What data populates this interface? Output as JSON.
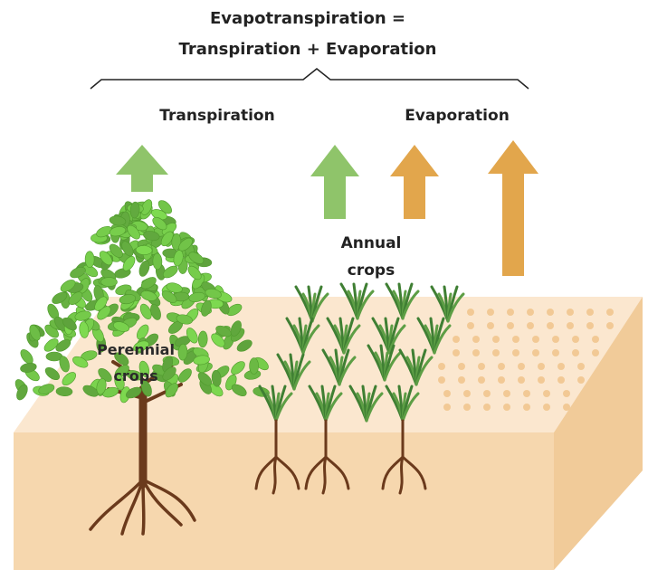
{
  "title": [
    "Evapotranspiration =",
    "Transpiration + Evaporation"
  ],
  "labels": {
    "transpiration": "Transpiration",
    "evaporation": "Evaporation",
    "annual_crops": [
      "Annual",
      "crops"
    ],
    "perennial_crops": [
      "Perennial",
      "crops"
    ]
  }
}
